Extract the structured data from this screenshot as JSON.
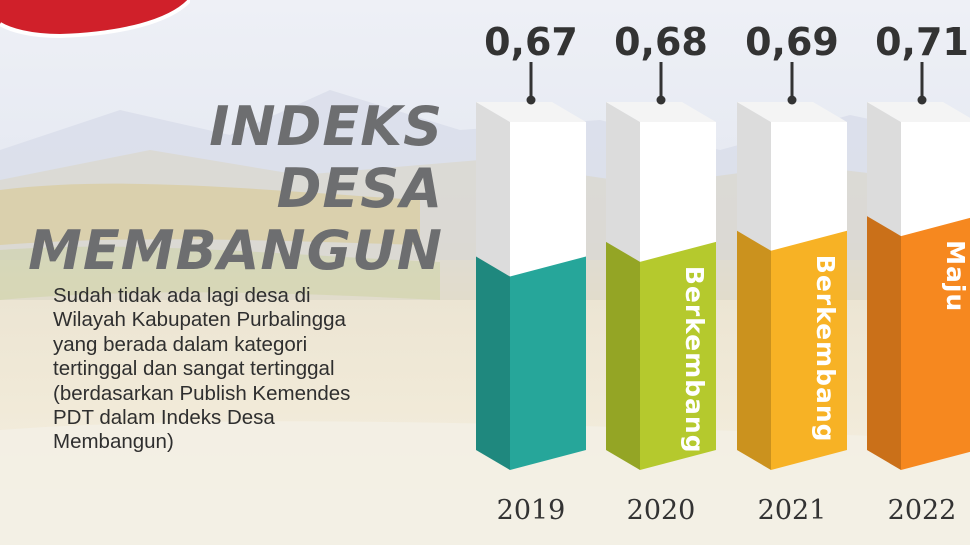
{
  "title": {
    "line1": "INDEKS",
    "line2": "DESA",
    "line3": "MEMBANGUN"
  },
  "description": {
    "lines": [
      "Sudah tidak ada lagi desa di",
      "Wilayah Kabupaten Purbalingga",
      "yang berada dalam kategori",
      "tertinggal dan sangat tertinggal",
      "(berdasarkan Publish Kemendes",
      "PDT dalam Indeks Desa",
      "Membangun)"
    ]
  },
  "colors": {
    "title": "#6d6e70",
    "bar_2019": "#26a69a",
    "bar_2020": "#b5c92d",
    "bar_2021": "#f7b225",
    "bar_2022": "#f6881f",
    "bar_top": "#ffffff"
  },
  "chart_data": {
    "type": "bar",
    "categories": [
      "2019",
      "2020",
      "2021",
      "2022"
    ],
    "values": [
      0.67,
      0.68,
      0.69,
      0.71
    ],
    "value_labels": [
      "0,67",
      "0,68",
      "0,69",
      "0,71"
    ],
    "fill_levels": [
      0.58,
      0.62,
      0.65,
      0.69
    ],
    "status_labels": [
      "",
      "Berkembang",
      "Berkembang",
      "Maju"
    ],
    "bar_colors": [
      "#26a69a",
      "#b5c92d",
      "#f7b225",
      "#f6881f"
    ]
  }
}
